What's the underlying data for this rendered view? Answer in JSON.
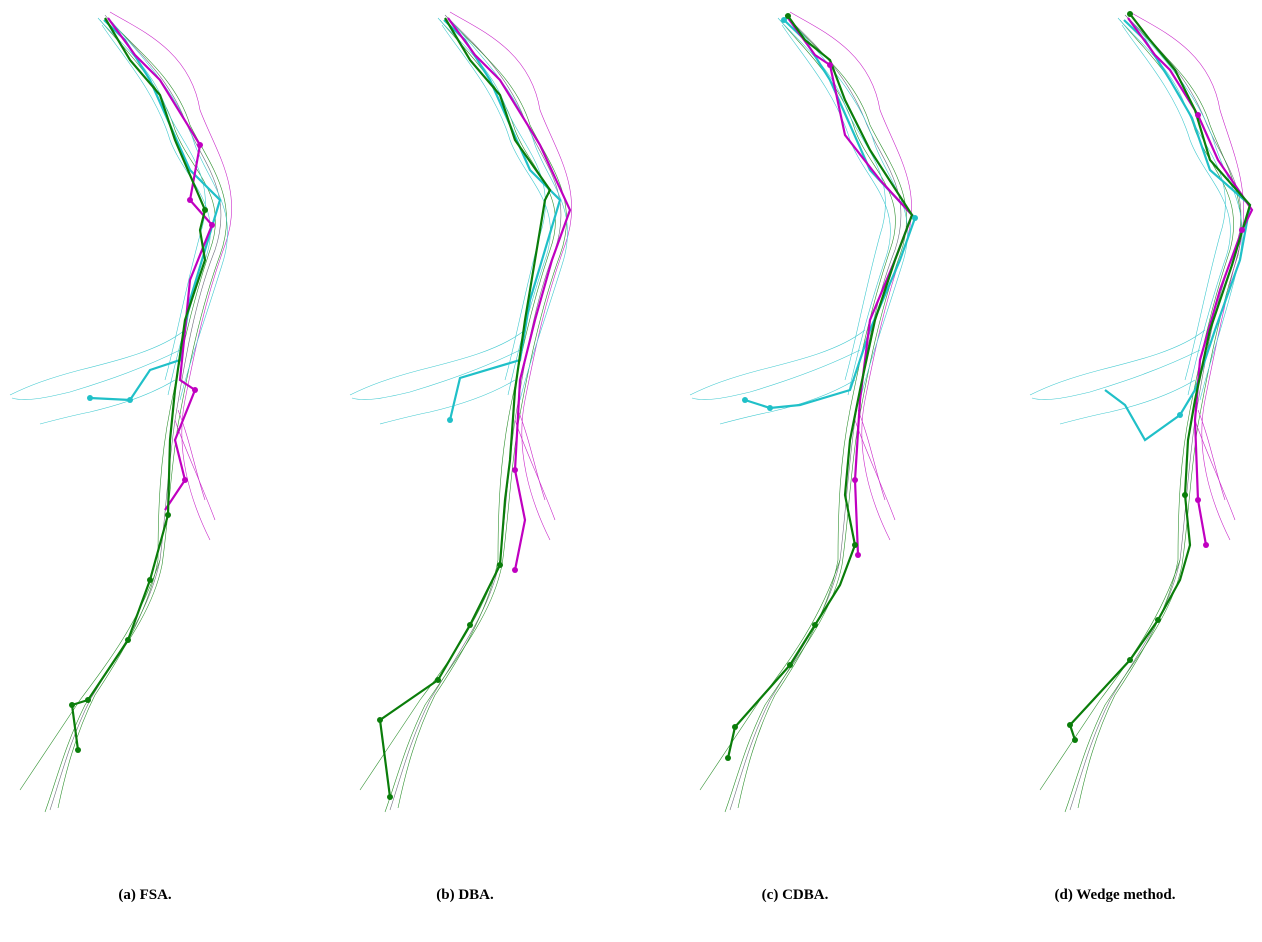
{
  "figure": {
    "panels": [
      {
        "caption": "(a) FSA."
      },
      {
        "caption": "(b) DBA."
      },
      {
        "caption": "(c) CDBA."
      },
      {
        "caption": "(d) Wedge method."
      }
    ],
    "colors": {
      "cyan_cluster": "#20c0c8",
      "magenta_cluster": "#c000c0",
      "green_cluster": "#0a7d0a",
      "gray_traces": "#555566"
    }
  }
}
